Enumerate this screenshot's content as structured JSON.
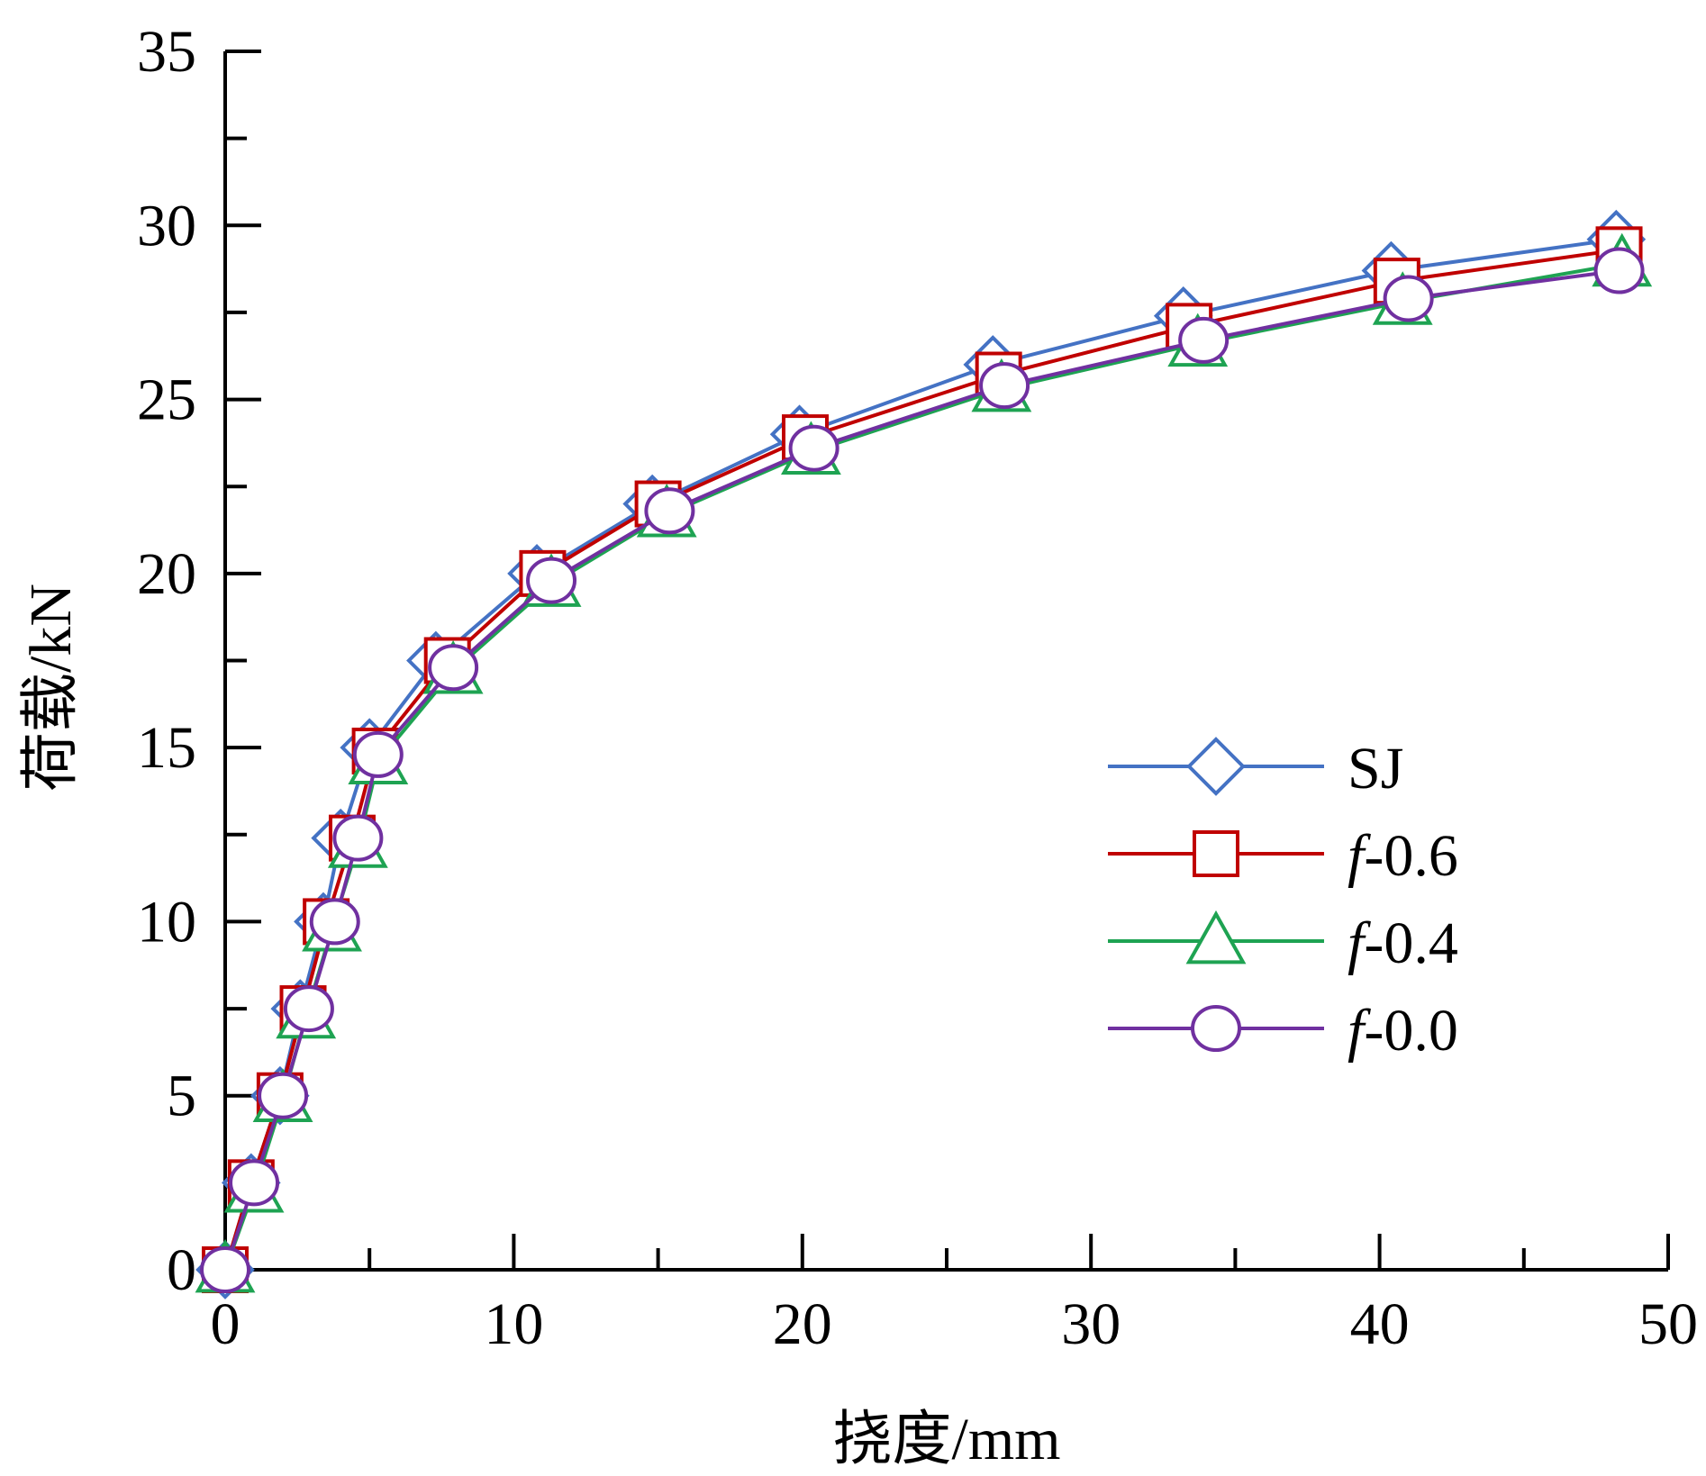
{
  "chart_data": {
    "type": "line",
    "xlabel": "挠度/mm",
    "ylabel": "荷载/kN",
    "xlim": [
      0,
      50
    ],
    "ylim": [
      0,
      35
    ],
    "xticks": [
      "0",
      "10",
      "20",
      "30",
      "40",
      "50"
    ],
    "yticks": [
      "0",
      "5",
      "10",
      "15",
      "20",
      "25",
      "30",
      "35"
    ],
    "grid": false,
    "legend_position": "center-right",
    "series": [
      {
        "name": "SJ",
        "name_italic_prefix": "",
        "name_suffix": "SJ",
        "color": "#4472C4",
        "marker": "diamond",
        "x": [
          0,
          0.9,
          1.9,
          2.6,
          3.4,
          4.0,
          5.0,
          7.3,
          10.8,
          14.8,
          19.9,
          26.6,
          33.2,
          40.4,
          48.2
        ],
        "y": [
          0,
          2.5,
          5.0,
          7.5,
          10.0,
          12.4,
          15.0,
          17.5,
          20.0,
          22.0,
          24.0,
          26.0,
          27.4,
          28.7,
          29.6
        ]
      },
      {
        "name": "f-0.6",
        "name_italic_prefix": "f",
        "name_suffix": "-0.6",
        "color": "#C00000",
        "marker": "square",
        "x": [
          0,
          0.9,
          1.9,
          2.7,
          3.5,
          4.4,
          5.2,
          7.7,
          11.0,
          15.0,
          20.1,
          26.8,
          33.4,
          40.6,
          48.3
        ],
        "y": [
          0,
          2.5,
          5.0,
          7.5,
          10.0,
          12.4,
          14.9,
          17.5,
          20.0,
          22.0,
          23.9,
          25.7,
          27.1,
          28.4,
          29.3
        ]
      },
      {
        "name": "f-0.4",
        "name_italic_prefix": "f",
        "name_suffix": "-0.4",
        "color": "#1EA352",
        "marker": "triangle",
        "x": [
          0,
          1.0,
          2.0,
          2.8,
          3.7,
          4.6,
          5.3,
          7.9,
          11.3,
          15.3,
          20.3,
          26.9,
          33.7,
          40.8,
          48.4
        ],
        "y": [
          0,
          2.3,
          4.9,
          7.3,
          9.8,
          12.2,
          14.6,
          17.2,
          19.7,
          21.7,
          23.5,
          25.3,
          26.6,
          27.8,
          28.9
        ]
      },
      {
        "name": "f-0.0",
        "name_italic_prefix": "f",
        "name_suffix": "-0.0",
        "color": "#7030A0",
        "marker": "circle",
        "x": [
          0,
          1.0,
          2.0,
          2.9,
          3.8,
          4.6,
          5.3,
          7.9,
          11.3,
          15.4,
          20.4,
          27.0,
          33.9,
          41.0,
          48.3
        ],
        "y": [
          0,
          2.5,
          5.0,
          7.5,
          10.0,
          12.4,
          14.8,
          17.3,
          19.8,
          21.8,
          23.6,
          25.4,
          26.7,
          27.9,
          28.7
        ]
      }
    ]
  }
}
